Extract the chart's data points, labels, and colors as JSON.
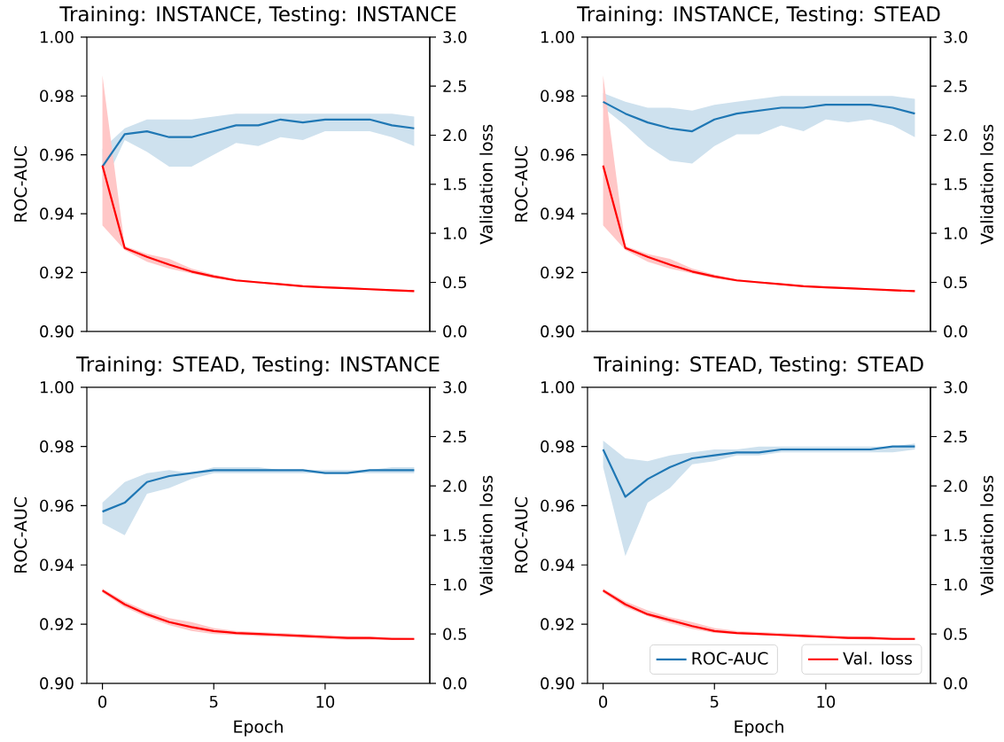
{
  "chart_data": [
    {
      "type": "line",
      "title": "Training: INSTANCE, Testing: INSTANCE",
      "ylabel": "ROC-AUC",
      "y2label": "Validation loss",
      "tick_labels": "y",
      "xlim": [
        -0.7,
        14.7
      ],
      "xticks": [
        0,
        5,
        10
      ],
      "ylim": [
        0.9,
        1.0
      ],
      "yticks": [
        {
          "value": 0.9,
          "label": "0.90"
        },
        {
          "value": 0.92,
          "label": "0.92"
        },
        {
          "value": 0.94,
          "label": "0.94"
        },
        {
          "value": 0.96,
          "label": "0.96"
        },
        {
          "value": 0.98,
          "label": "0.98"
        },
        {
          "value": 1.0,
          "label": "1.00"
        }
      ],
      "y2lim": [
        0,
        3
      ],
      "y2ticks": [
        {
          "value": 0,
          "label": "0.0"
        },
        {
          "value": 0.5,
          "label": "0.5"
        },
        {
          "value": 1,
          "label": "1.0"
        },
        {
          "value": 1.5,
          "label": "1.5"
        },
        {
          "value": 2,
          "label": "2.0"
        },
        {
          "value": 2.5,
          "label": "2.5"
        },
        {
          "value": 3,
          "label": "3.0"
        }
      ],
      "x": [
        0,
        1,
        2,
        3,
        4,
        5,
        6,
        7,
        8,
        9,
        10,
        11,
        12,
        13,
        14
      ],
      "series": [
        {
          "color": "#1f77b4",
          "values": [
            0.956,
            0.967,
            0.968,
            0.966,
            0.966,
            0.968,
            0.97,
            0.97,
            0.972,
            0.971,
            0.972,
            0.972,
            0.972,
            0.97,
            0.969
          ],
          "lower": [
            0.949,
            0.965,
            0.961,
            0.956,
            0.956,
            0.96,
            0.964,
            0.963,
            0.966,
            0.965,
            0.968,
            0.968,
            0.968,
            0.966,
            0.963
          ],
          "upper": [
            0.962,
            0.969,
            0.972,
            0.972,
            0.972,
            0.973,
            0.974,
            0.974,
            0.974,
            0.974,
            0.974,
            0.974,
            0.974,
            0.974,
            0.973
          ]
        },
        {
          "color": "#ff0000",
          "axis": "y2",
          "values": [
            1.69,
            0.85,
            0.76,
            0.68,
            0.61,
            0.56,
            0.52,
            0.5,
            0.48,
            0.46,
            0.45,
            0.44,
            0.43,
            0.42,
            0.41
          ],
          "lower": [
            1.08,
            0.83,
            0.71,
            0.64,
            0.59,
            0.54,
            0.51,
            0.49,
            null,
            0.45,
            0.44,
            null,
            0.42,
            0.41,
            0.4
          ],
          "upper": [
            2.61,
            0.87,
            0.79,
            0.74,
            0.64,
            0.58,
            0.53,
            0.51,
            null,
            0.47,
            0.46,
            null,
            0.44,
            0.43,
            0.42
          ]
        }
      ]
    },
    {
      "type": "line",
      "title": "Training: INSTANCE, Testing: STEAD",
      "ylabel": "ROC-AUC",
      "y2label": "Validation loss",
      "tick_labels": "y",
      "xlim": [
        -0.7,
        14.7
      ],
      "xticks": [
        0,
        5,
        10
      ],
      "ylim": [
        0.9,
        1.0
      ],
      "yticks": [
        {
          "value": 0.9,
          "label": "0.90"
        },
        {
          "value": 0.92,
          "label": "0.92"
        },
        {
          "value": 0.94,
          "label": "0.94"
        },
        {
          "value": 0.96,
          "label": "0.96"
        },
        {
          "value": 0.98,
          "label": "0.98"
        },
        {
          "value": 1.0,
          "label": "1.00"
        }
      ],
      "y2lim": [
        0,
        3
      ],
      "y2ticks": [
        {
          "value": 0,
          "label": "0.0"
        },
        {
          "value": 0.5,
          "label": "0.5"
        },
        {
          "value": 1,
          "label": "1.0"
        },
        {
          "value": 1.5,
          "label": "1.5"
        },
        {
          "value": 2,
          "label": "2.0"
        },
        {
          "value": 2.5,
          "label": "2.5"
        },
        {
          "value": 3,
          "label": "3.0"
        }
      ],
      "x": [
        0,
        1,
        2,
        3,
        4,
        5,
        6,
        7,
        8,
        9,
        10,
        11,
        12,
        13,
        14
      ],
      "series": [
        {
          "color": "#1f77b4",
          "values": [
            0.978,
            0.974,
            0.971,
            0.969,
            0.968,
            0.972,
            0.974,
            0.975,
            0.976,
            0.976,
            0.977,
            0.977,
            0.977,
            0.976,
            0.974
          ],
          "lower": [
            0.976,
            0.97,
            0.963,
            0.958,
            0.957,
            0.963,
            0.967,
            0.967,
            0.97,
            0.968,
            0.972,
            0.971,
            0.972,
            0.97,
            0.966
          ],
          "upper": [
            0.981,
            0.978,
            0.976,
            0.976,
            0.975,
            0.977,
            0.978,
            0.979,
            0.98,
            0.98,
            0.98,
            0.98,
            0.98,
            0.98,
            0.979
          ]
        },
        {
          "color": "#ff0000",
          "axis": "y2",
          "values": [
            1.69,
            0.85,
            0.76,
            0.68,
            0.61,
            0.56,
            0.52,
            0.5,
            0.48,
            0.46,
            0.45,
            0.44,
            0.43,
            0.42,
            0.41
          ],
          "lower": [
            1.08,
            0.83,
            0.71,
            0.64,
            0.59,
            0.54,
            0.51,
            0.49,
            null,
            0.45,
            0.44,
            null,
            0.42,
            0.41,
            0.4
          ],
          "upper": [
            2.61,
            0.87,
            0.79,
            0.74,
            0.64,
            0.58,
            0.53,
            0.51,
            null,
            0.47,
            0.46,
            null,
            0.44,
            0.43,
            0.42
          ]
        }
      ]
    },
    {
      "type": "line",
      "title": "Training: STEAD, Testing: INSTANCE",
      "xlabel": "Epoch",
      "ylabel": "ROC-AUC",
      "y2label": "Validation loss",
      "xlim": [
        -0.7,
        14.7
      ],
      "xticks": [
        0,
        5,
        10
      ],
      "ylim": [
        0.9,
        1.0
      ],
      "yticks": [
        {
          "value": 0.9,
          "label": "0.90"
        },
        {
          "value": 0.92,
          "label": "0.92"
        },
        {
          "value": 0.94,
          "label": "0.94"
        },
        {
          "value": 0.96,
          "label": "0.96"
        },
        {
          "value": 0.98,
          "label": "0.98"
        },
        {
          "value": 1.0,
          "label": "1.00"
        }
      ],
      "y2lim": [
        0,
        3
      ],
      "y2ticks": [
        {
          "value": 0,
          "label": "0.0"
        },
        {
          "value": 0.5,
          "label": "0.5"
        },
        {
          "value": 1,
          "label": "1.0"
        },
        {
          "value": 1.5,
          "label": "1.5"
        },
        {
          "value": 2,
          "label": "2.0"
        },
        {
          "value": 2.5,
          "label": "2.5"
        },
        {
          "value": 3,
          "label": "3.0"
        }
      ],
      "x": [
        0,
        1,
        2,
        3,
        4,
        5,
        6,
        7,
        8,
        9,
        10,
        11,
        12,
        13,
        14
      ],
      "series": [
        {
          "color": "#1f77b4",
          "values": [
            0.958,
            0.961,
            0.968,
            0.97,
            0.971,
            0.972,
            0.972,
            0.972,
            0.972,
            0.972,
            0.971,
            0.971,
            0.972,
            0.972,
            0.972
          ],
          "lower": [
            0.954,
            0.95,
            0.964,
            0.966,
            0.969,
            0.971,
            0.971,
            0.971,
            0.971,
            0.971,
            0.971,
            0.971,
            0.971,
            0.971,
            0.971
          ],
          "upper": [
            0.961,
            0.968,
            0.971,
            0.972,
            0.971,
            0.973,
            0.973,
            0.973,
            0.972,
            0.972,
            0.972,
            0.972,
            0.972,
            0.973,
            0.973
          ]
        },
        {
          "color": "#ff0000",
          "axis": "y2",
          "values": [
            0.94,
            0.8,
            0.7,
            0.62,
            0.57,
            0.53,
            0.51,
            0.5,
            0.49,
            0.48,
            0.47,
            0.46,
            0.46,
            0.45,
            0.45
          ],
          "lower": [
            0.92,
            0.77,
            0.67,
            0.59,
            0.53,
            0.5,
            0.49,
            0.48,
            0.47,
            0.46,
            0.45,
            0.44,
            null,
            null,
            0.44
          ],
          "upper": [
            0.96,
            0.83,
            0.73,
            0.66,
            0.62,
            0.56,
            0.53,
            0.52,
            0.51,
            0.5,
            0.49,
            0.48,
            null,
            null,
            0.46
          ]
        }
      ]
    },
    {
      "type": "line",
      "title": "Training: STEAD, Testing: STEAD",
      "xlabel": "Epoch",
      "ylabel": "ROC-AUC",
      "y2label": "Validation loss",
      "legend": "bottom right",
      "xlim": [
        -0.7,
        14.7
      ],
      "xticks": [
        0,
        5,
        10
      ],
      "ylim": [
        0.9,
        1.0
      ],
      "yticks": [
        {
          "value": 0.9,
          "label": "0.90"
        },
        {
          "value": 0.92,
          "label": "0.92"
        },
        {
          "value": 0.94,
          "label": "0.94"
        },
        {
          "value": 0.96,
          "label": "0.96"
        },
        {
          "value": 0.98,
          "label": "0.98"
        },
        {
          "value": 1.0,
          "label": "1.00"
        }
      ],
      "y2lim": [
        0,
        3
      ],
      "y2ticks": [
        {
          "value": 0,
          "label": "0.0"
        },
        {
          "value": 0.5,
          "label": "0.5"
        },
        {
          "value": 1,
          "label": "1.0"
        },
        {
          "value": 1.5,
          "label": "1.5"
        },
        {
          "value": 2,
          "label": "2.0"
        },
        {
          "value": 2.5,
          "label": "2.5"
        },
        {
          "value": 3,
          "label": "3.0"
        }
      ],
      "x": [
        0,
        1,
        2,
        3,
        4,
        5,
        6,
        7,
        8,
        9,
        10,
        11,
        12,
        13,
        14
      ],
      "series": [
        {
          "name": "ROC-AUC",
          "color": "#1f77b4",
          "values": [
            0.979,
            0.963,
            0.969,
            0.973,
            0.976,
            0.977,
            0.978,
            0.978,
            0.979,
            0.979,
            0.979,
            0.979,
            0.979,
            0.98,
            0.98
          ],
          "lower": [
            0.973,
            0.943,
            0.961,
            0.966,
            0.974,
            0.975,
            0.977,
            0.977,
            0.978,
            0.978,
            0.978,
            0.978,
            0.978,
            0.978,
            0.979
          ],
          "upper": [
            0.982,
            0.976,
            0.975,
            0.977,
            0.978,
            0.979,
            0.979,
            0.98,
            0.98,
            0.98,
            0.98,
            0.98,
            0.98,
            0.98,
            0.981
          ]
        },
        {
          "name": "Val. loss",
          "color": "#ff0000",
          "axis": "y2",
          "values": [
            0.94,
            0.8,
            0.7,
            0.64,
            0.58,
            0.53,
            0.51,
            0.5,
            0.49,
            0.48,
            0.47,
            0.46,
            0.46,
            0.45,
            0.45
          ],
          "lower": [
            0.92,
            0.77,
            0.68,
            0.61,
            0.55,
            0.51,
            0.5,
            0.49,
            0.48,
            0.47,
            0.46,
            0.45,
            0.44,
            null,
            0.44
          ],
          "upper": [
            0.96,
            0.83,
            0.74,
            0.67,
            0.62,
            0.56,
            0.53,
            0.52,
            0.51,
            0.5,
            0.49,
            0.48,
            0.47,
            null,
            0.46
          ]
        }
      ]
    }
  ]
}
